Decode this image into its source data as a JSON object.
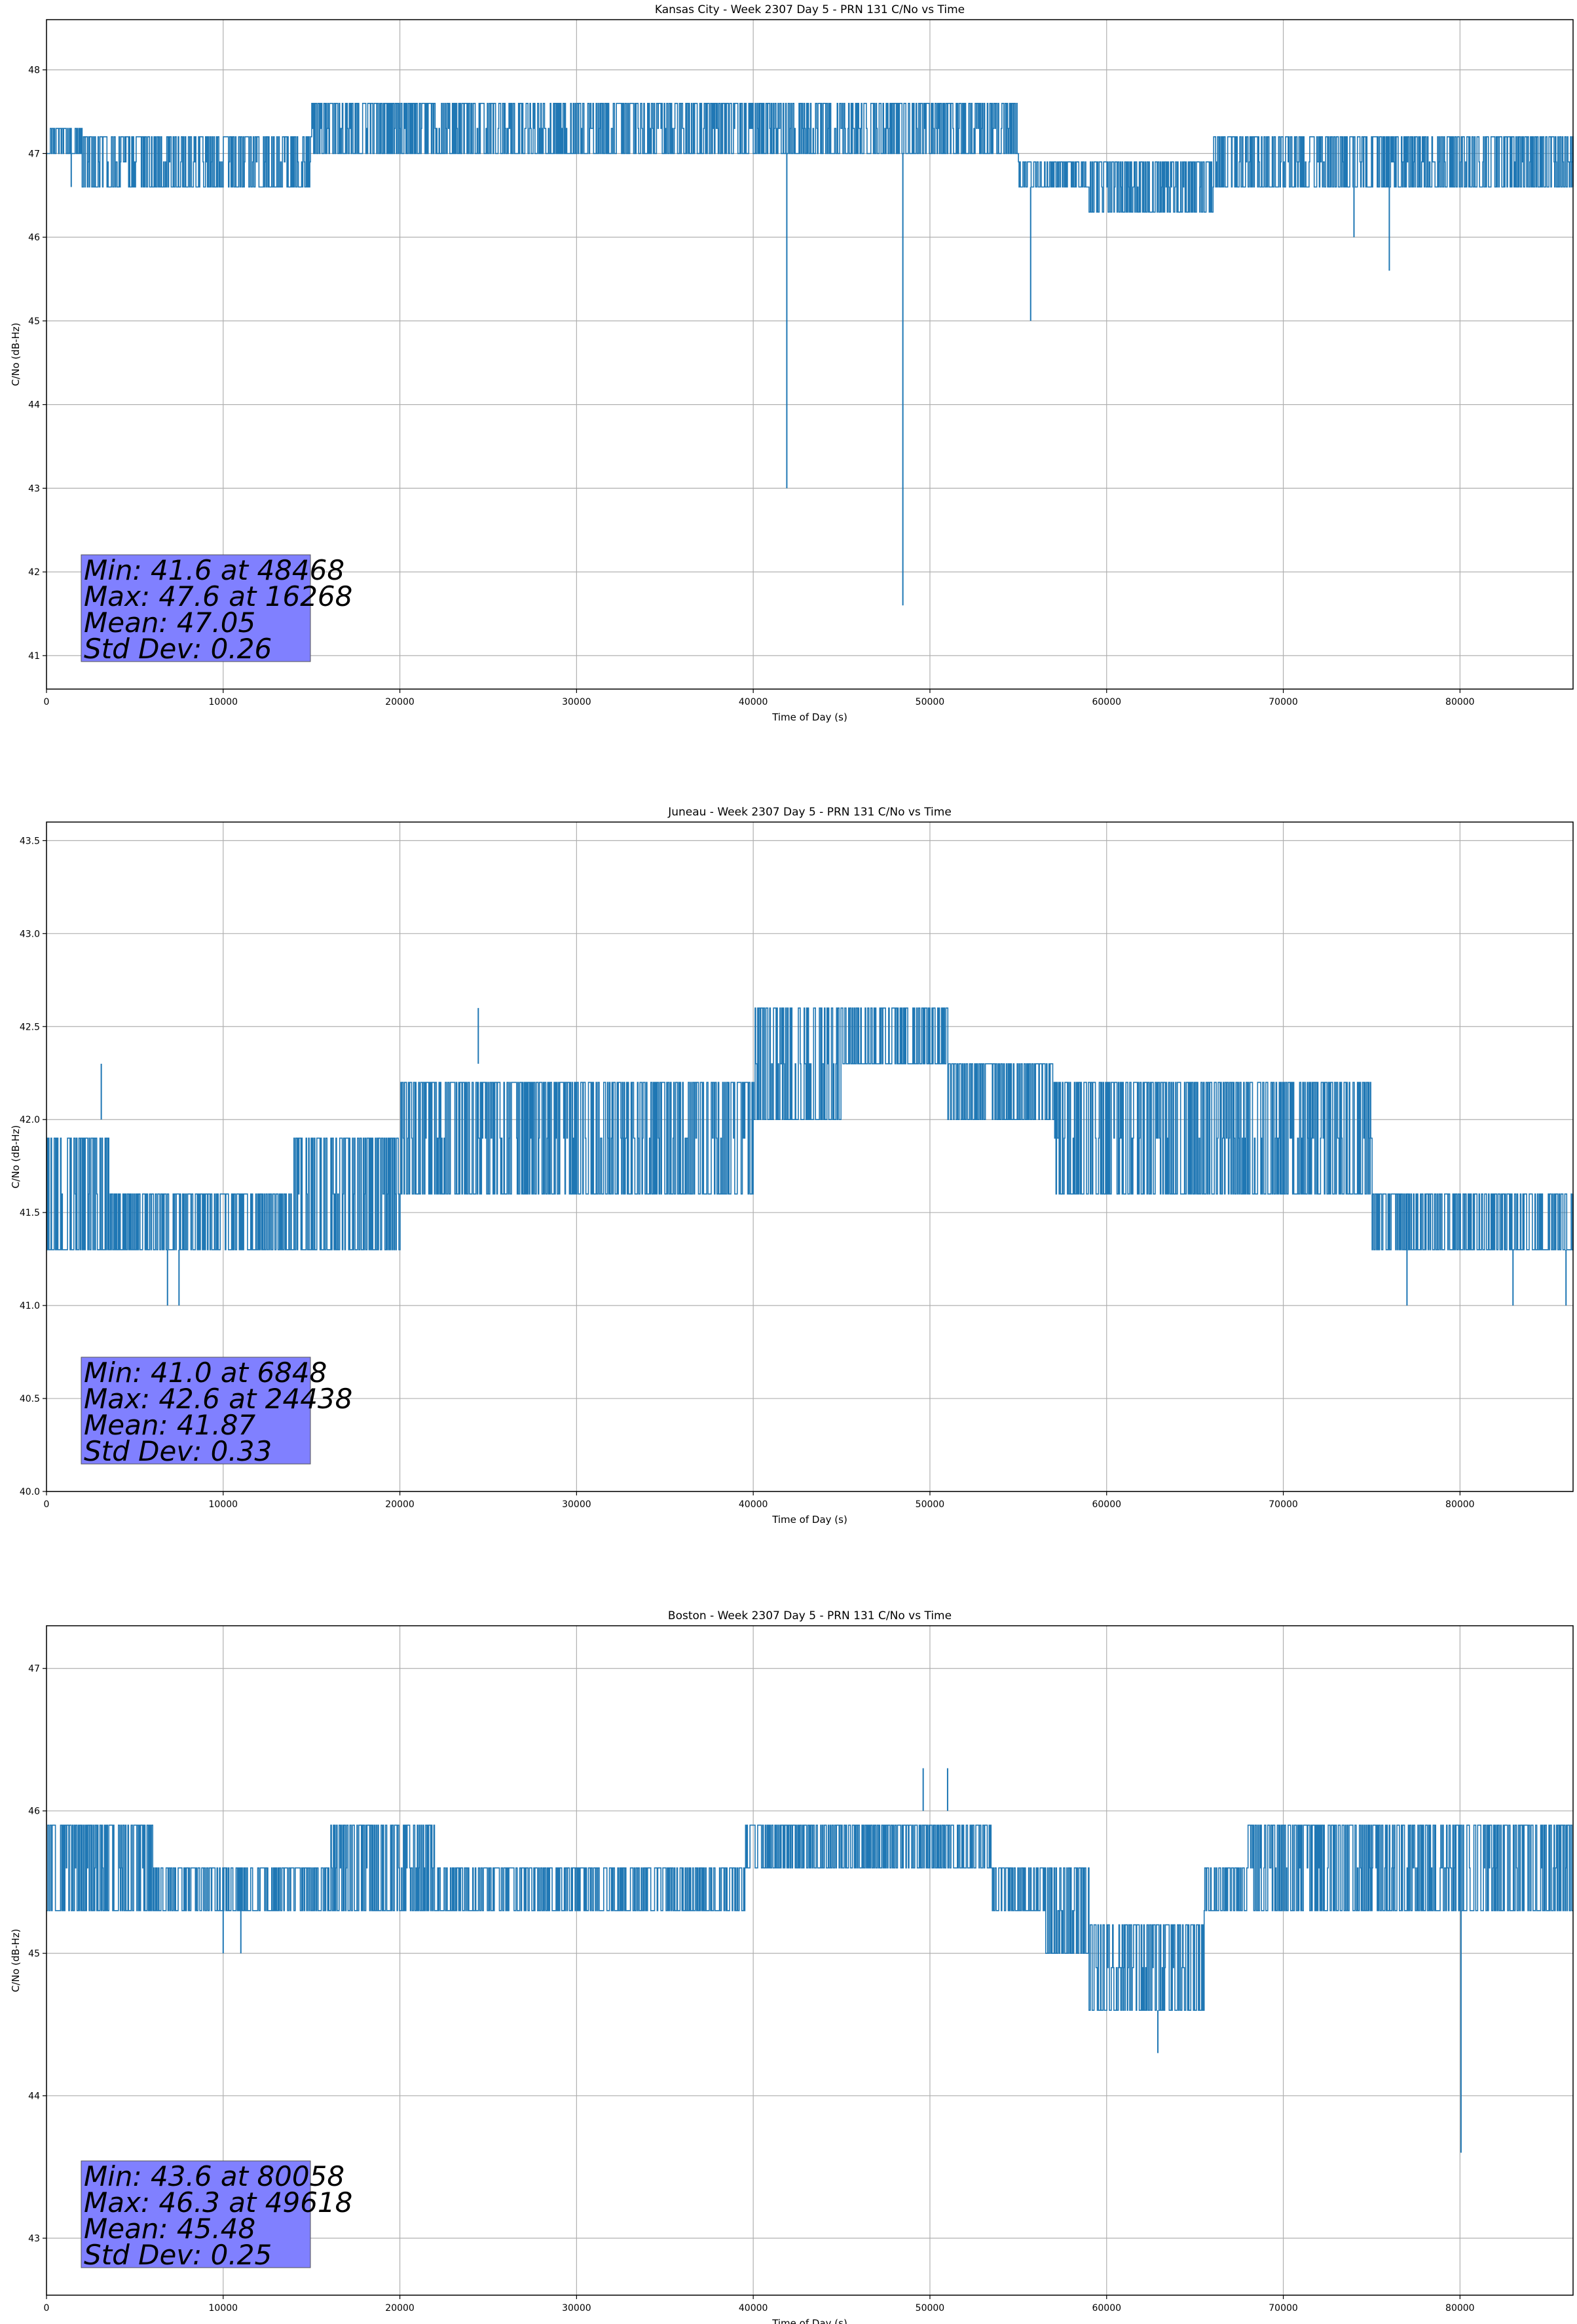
{
  "chart_data": [
    {
      "type": "line",
      "title": "Kansas City - Week 2307 Day 5 - PRN 131 C/No vs Time",
      "xlabel": "Time of Day (s)",
      "ylabel": "C/No (dB-Hz)",
      "xlim": [
        0,
        86400
      ],
      "ylim": [
        40.6,
        48.6
      ],
      "xticks": [
        0,
        10000,
        20000,
        30000,
        40000,
        50000,
        60000,
        70000,
        80000
      ],
      "yticks": [
        41,
        42,
        43,
        44,
        45,
        46,
        47,
        48
      ],
      "grid": true,
      "color": "#1f77b4",
      "segments": [
        {
          "start": 0,
          "end": 2000,
          "low": 47.0,
          "high": 47.3
        },
        {
          "start": 2000,
          "end": 12500,
          "low": 46.6,
          "high": 47.3
        },
        {
          "start": 12500,
          "end": 15000,
          "low": 46.6,
          "high": 47.3
        },
        {
          "start": 15000,
          "end": 24000,
          "low": 47.0,
          "high": 47.6
        },
        {
          "start": 24000,
          "end": 33000,
          "low": 47.0,
          "high": 47.6
        },
        {
          "start": 33000,
          "end": 40000,
          "low": 47.0,
          "high": 47.6
        },
        {
          "start": 40000,
          "end": 47000,
          "low": 47.0,
          "high": 47.6
        },
        {
          "start": 47000,
          "end": 55000,
          "low": 47.0,
          "high": 47.6
        },
        {
          "start": 55000,
          "end": 59000,
          "low": 46.6,
          "high": 47.0
        },
        {
          "start": 59000,
          "end": 66000,
          "low": 46.3,
          "high": 47.0
        },
        {
          "start": 66000,
          "end": 75000,
          "low": 46.6,
          "high": 47.3
        },
        {
          "start": 75000,
          "end": 86400,
          "low": 46.6,
          "high": 47.3
        }
      ],
      "spikes": [
        {
          "x": 1400,
          "y": 46.6
        },
        {
          "x": 41900,
          "y": 43.0
        },
        {
          "x": 48468,
          "y": 41.6
        },
        {
          "x": 55700,
          "y": 45.0
        },
        {
          "x": 74000,
          "y": 46.0
        },
        {
          "x": 76000,
          "y": 45.6
        }
      ],
      "stats": [
        "Min: 41.6 at 48468",
        "Max: 47.6 at 16268",
        "Mean: 47.05",
        "Std Dev: 0.26"
      ],
      "stats_box_color": "#8080ff"
    },
    {
      "type": "line",
      "title": "Juneau - Week 2307 Day 5 - PRN 131 C/No vs Time",
      "xlabel": "Time of Day (s)",
      "ylabel": "C/No (dB-Hz)",
      "xlim": [
        0,
        86400
      ],
      "ylim": [
        40.0,
        43.6
      ],
      "xticks": [
        0,
        10000,
        20000,
        30000,
        40000,
        50000,
        60000,
        70000,
        80000
      ],
      "yticks": [
        40.0,
        40.5,
        41.0,
        41.5,
        42.0,
        42.5,
        43.0,
        43.5
      ],
      "grid": true,
      "color": "#1f77b4",
      "segments": [
        {
          "start": 0,
          "end": 3500,
          "low": 41.3,
          "high": 42.0
        },
        {
          "start": 3500,
          "end": 14000,
          "low": 41.3,
          "high": 41.6
        },
        {
          "start": 14000,
          "end": 20000,
          "low": 41.3,
          "high": 42.0
        },
        {
          "start": 20000,
          "end": 24000,
          "low": 41.6,
          "high": 42.3
        },
        {
          "start": 24000,
          "end": 40000,
          "low": 41.6,
          "high": 42.3
        },
        {
          "start": 40000,
          "end": 45000,
          "low": 42.0,
          "high": 42.6
        },
        {
          "start": 45000,
          "end": 51000,
          "low": 42.3,
          "high": 42.6
        },
        {
          "start": 51000,
          "end": 57000,
          "low": 42.0,
          "high": 42.3
        },
        {
          "start": 57000,
          "end": 63000,
          "low": 41.6,
          "high": 42.3
        },
        {
          "start": 63000,
          "end": 75000,
          "low": 41.6,
          "high": 42.3
        },
        {
          "start": 75000,
          "end": 86400,
          "low": 41.3,
          "high": 41.6
        }
      ],
      "spikes": [
        {
          "x": 6848,
          "y": 41.0
        },
        {
          "x": 7500,
          "y": 41.0
        },
        {
          "x": 24438,
          "y": 42.6
        },
        {
          "x": 3100,
          "y": 42.3
        },
        {
          "x": 77000,
          "y": 41.0
        },
        {
          "x": 83000,
          "y": 41.0
        },
        {
          "x": 86000,
          "y": 41.0
        }
      ],
      "stats": [
        "Min: 41.0 at 6848",
        "Max: 42.6 at 24438",
        "Mean: 41.87",
        "Std Dev: 0.33"
      ],
      "stats_box_color": "#8080ff"
    },
    {
      "type": "line",
      "title": "Boston - Week 2307 Day 5 - PRN 131 C/No vs Time",
      "xlabel": "Time of Day (s)",
      "ylabel": "C/No (dB-Hz)",
      "xlim": [
        0,
        86400
      ],
      "ylim": [
        42.6,
        47.3
      ],
      "xticks": [
        0,
        10000,
        20000,
        30000,
        40000,
        50000,
        60000,
        70000,
        80000
      ],
      "yticks": [
        43,
        44,
        45,
        46,
        47
      ],
      "grid": true,
      "color": "#1f77b4",
      "segments": [
        {
          "start": 0,
          "end": 6000,
          "low": 45.3,
          "high": 46.0
        },
        {
          "start": 6000,
          "end": 16000,
          "low": 45.3,
          "high": 45.6
        },
        {
          "start": 16000,
          "end": 22000,
          "low": 45.3,
          "high": 46.0
        },
        {
          "start": 22000,
          "end": 39500,
          "low": 45.3,
          "high": 45.6
        },
        {
          "start": 39500,
          "end": 53500,
          "low": 45.6,
          "high": 46.0
        },
        {
          "start": 53500,
          "end": 56500,
          "low": 45.3,
          "high": 45.6
        },
        {
          "start": 56500,
          "end": 59000,
          "low": 45.0,
          "high": 45.6
        },
        {
          "start": 59000,
          "end": 65500,
          "low": 44.6,
          "high": 45.3
        },
        {
          "start": 65500,
          "end": 68000,
          "low": 45.3,
          "high": 45.6
        },
        {
          "start": 68000,
          "end": 76000,
          "low": 45.3,
          "high": 46.0
        },
        {
          "start": 76000,
          "end": 86400,
          "low": 45.3,
          "high": 46.0
        }
      ],
      "spikes": [
        {
          "x": 80058,
          "y": 43.6
        },
        {
          "x": 62900,
          "y": 44.3
        },
        {
          "x": 49618,
          "y": 46.3
        },
        {
          "x": 51000,
          "y": 46.3
        },
        {
          "x": 11000,
          "y": 45.0
        },
        {
          "x": 10000,
          "y": 45.0
        }
      ],
      "stats": [
        "Min: 43.6 at 80058",
        "Max: 46.3 at 49618",
        "Mean: 45.48",
        "Std Dev: 0.25"
      ],
      "stats_box_color": "#8080ff"
    }
  ]
}
